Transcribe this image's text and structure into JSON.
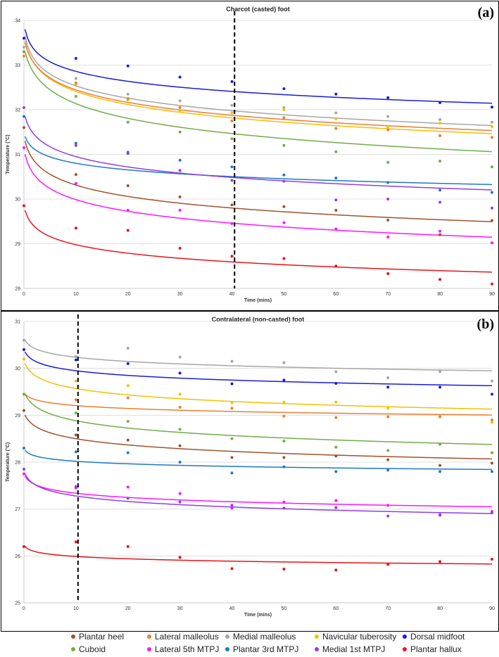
{
  "chart_data": [
    {
      "type": "scatter",
      "panel_label": "(a)",
      "title": "Charcot (casted) foot",
      "xlabel": "Time (mins)",
      "ylabel": "Temperature (°C)",
      "xlim": [
        0,
        90
      ],
      "ylim": [
        28,
        34
      ],
      "x_ticks": [
        "0",
        "10",
        "20",
        "30",
        "40",
        "50",
        "60",
        "70",
        "80",
        "90"
      ],
      "y_ticks": [
        "28",
        "29",
        "30",
        "31",
        "32",
        "33",
        "34"
      ],
      "vline_x": 40.5,
      "x": [
        0,
        10,
        20,
        30,
        40,
        50,
        60,
        70,
        80,
        90
      ],
      "series": [
        {
          "name": "Dorsal midfoot",
          "color": "#1a1ae0",
          "values": [
            33.6,
            33.15,
            32.98,
            32.73,
            32.63,
            32.47,
            32.35,
            32.27,
            32.16,
            32.06
          ],
          "fit": {
            "a": 33.8,
            "b": 0.33,
            "c": 0.4
          }
        },
        {
          "name": "Medial malleolus",
          "color": "#a6a6a6",
          "values": [
            33.4,
            32.7,
            32.35,
            32.2,
            32.1,
            32.05,
            31.93,
            31.85,
            31.78,
            31.72
          ],
          "fit": {
            "a": 33.65,
            "b": 0.412,
            "c": 0.5
          }
        },
        {
          "name": "Navicular tuberosity",
          "color": "#f2c000",
          "values": [
            33.3,
            32.57,
            32.22,
            31.98,
            31.93,
            32.0,
            31.8,
            31.62,
            31.7,
            31.62
          ],
          "fit": {
            "a": 33.55,
            "b": 0.441,
            "c": 0.6
          }
        },
        {
          "name": "Lateral malleolus",
          "color": "#ed7d31",
          "values": [
            33.2,
            32.6,
            32.25,
            32.05,
            31.75,
            31.82,
            31.58,
            31.55,
            31.42,
            31.38
          ],
          "fit": {
            "a": 33.5,
            "b": 0.426,
            "c": 0.7
          }
        },
        {
          "name": "Cuboid",
          "color": "#70ad47",
          "values": [
            33.3,
            32.3,
            31.72,
            31.5,
            31.35,
            31.2,
            31.06,
            30.82,
            30.85,
            30.72
          ],
          "fit": {
            "a": 33.3,
            "b": 0.507,
            "c": 0.9
          }
        },
        {
          "name": "Plantar 3rd MTPJ",
          "color": "#1f78c8",
          "values": [
            31.85,
            31.25,
            31.05,
            30.87,
            30.72,
            30.54,
            30.47,
            30.37,
            30.2,
            30.15
          ],
          "fit": {
            "a": 31.4,
            "b": 0.221,
            "c": 0.5
          }
        },
        {
          "name": "Medial 1st MTPJ",
          "color": "#8f3ee6",
          "values": [
            32.05,
            31.2,
            31.02,
            30.64,
            30.42,
            30.4,
            29.98,
            30.0,
            29.93,
            29.8
          ],
          "fit": {
            "a": 31.85,
            "b": 0.348,
            "c": 0.6
          }
        },
        {
          "name": "Plantar heel",
          "color": "#a0522d",
          "values": [
            31.6,
            30.55,
            30.3,
            30.05,
            29.87,
            29.83,
            29.75,
            29.53,
            29.2,
            29.52
          ],
          "fit": {
            "a": 31.3,
            "b": 0.382,
            "c": 0.6
          }
        },
        {
          "name": "Lateral 5th MTPJ",
          "color": "#ff14ff",
          "values": [
            31.15,
            30.35,
            29.75,
            29.75,
            29.45,
            29.47,
            29.33,
            29.15,
            29.28,
            29.02
          ],
          "fit": {
            "a": 31.0,
            "b": 0.392,
            "c": 0.6
          }
        },
        {
          "name": "Plantar hallux",
          "color": "#e8141a",
          "values": [
            29.85,
            29.35,
            29.3,
            28.9,
            28.72,
            28.67,
            28.5,
            28.33,
            28.2,
            28.1
          ],
          "fit": {
            "a": 29.75,
            "b": 0.285,
            "c": 0.5
          }
        }
      ]
    },
    {
      "type": "scatter",
      "panel_label": "(b)",
      "title": "Contralateral (non-casted) foot",
      "xlabel": "Time (mins)",
      "ylabel": "Temperature (°C)",
      "xlim": [
        0,
        90
      ],
      "ylim": [
        25,
        31
      ],
      "x_ticks": [
        "0",
        "10",
        "20",
        "30",
        "40",
        "50",
        "60",
        "70",
        "80",
        "90"
      ],
      "y_ticks": [
        "25",
        "26",
        "27",
        "28",
        "29",
        "30",
        "31"
      ],
      "vline_x": 10.4,
      "x": [
        0,
        10,
        20,
        30,
        40,
        50,
        60,
        70,
        80,
        90
      ],
      "series": [
        {
          "name": "Medial malleolus",
          "color": "#a6a6a6",
          "values": [
            30.6,
            30.25,
            30.43,
            30.24,
            30.15,
            30.12,
            29.93,
            29.8,
            29.93,
            29.73
          ],
          "fit": {
            "a": 30.6,
            "b": 0.134,
            "c": 0.5
          }
        },
        {
          "name": "Dorsal midfoot",
          "color": "#1a1ae0",
          "values": [
            30.4,
            30.18,
            30.1,
            29.9,
            29.67,
            29.75,
            29.68,
            29.6,
            29.6,
            29.45
          ],
          "fit": {
            "a": 30.35,
            "b": 0.148,
            "c": 0.5
          }
        },
        {
          "name": "Navicular tuberosity",
          "color": "#f2c000",
          "values": [
            30.2,
            29.73,
            29.63,
            29.45,
            29.27,
            29.28,
            29.28,
            29.15,
            28.97,
            28.85
          ],
          "fit": {
            "a": 30.1,
            "b": 0.205,
            "c": 0.6
          }
        },
        {
          "name": "Lateral malleolus",
          "color": "#ed7d31",
          "values": [
            29.45,
            29.33,
            29.37,
            29.17,
            29.15,
            28.98,
            28.95,
            28.97,
            28.97,
            28.9
          ],
          "fit": {
            "a": 29.45,
            "b": 0.094,
            "c": 0.6
          }
        },
        {
          "name": "Cuboid",
          "color": "#70ad47",
          "values": [
            29.45,
            29.05,
            28.87,
            28.7,
            28.5,
            28.45,
            28.32,
            28.25,
            28.38,
            28.2
          ],
          "fit": {
            "a": 29.45,
            "b": 0.238,
            "c": 0.8
          }
        },
        {
          "name": "Plantar heel",
          "color": "#a0522d",
          "values": [
            29.1,
            28.58,
            28.47,
            28.35,
            28.1,
            28.1,
            28.13,
            28.05,
            27.93,
            27.98
          ],
          "fit": {
            "a": 29.0,
            "b": 0.202,
            "c": 0.7
          }
        },
        {
          "name": "Plantar 3rd MTPJ",
          "color": "#1f78c8",
          "values": [
            28.3,
            28.22,
            28.2,
            28.0,
            27.77,
            27.9,
            27.8,
            27.83,
            27.8,
            27.8
          ],
          "fit": {
            "a": 28.25,
            "b": 0.081,
            "c": 0.4
          }
        },
        {
          "name": "Lateral 5th MTPJ",
          "color": "#ff14ff",
          "values": [
            27.75,
            27.45,
            27.47,
            27.33,
            27.02,
            27.15,
            27.18,
            27.08,
            26.88,
            26.95
          ],
          "fit": {
            "a": 27.7,
            "b": 0.134,
            "c": 0.5
          }
        },
        {
          "name": "Medial 1st MTPJ",
          "color": "#8f3ee6",
          "values": [
            27.85,
            27.48,
            27.23,
            27.15,
            27.08,
            27.02,
            27.03,
            26.85,
            26.87,
            26.92
          ],
          "fit": {
            "a": 27.75,
            "b": 0.174,
            "c": 0.5
          }
        },
        {
          "name": "Plantar hallux",
          "color": "#e8141a",
          "values": [
            26.2,
            26.3,
            26.2,
            25.97,
            25.73,
            25.72,
            25.7,
            25.82,
            25.88,
            25.93
          ],
          "fit": {
            "a": 26.2,
            "b": 0.074,
            "c": 0.4
          }
        }
      ]
    }
  ],
  "legend": {
    "rows": [
      [
        {
          "label": "Plantar heel",
          "color": "#a0522d"
        },
        {
          "label": "Lateral malleolus",
          "color": "#ed7d31"
        },
        {
          "label": "Medial malleolus",
          "color": "#a6a6a6"
        },
        {
          "label": "Navicular tuberosity",
          "color": "#f2c000"
        },
        {
          "label": "Dorsal midfoot",
          "color": "#1a1ae0"
        }
      ],
      [
        {
          "label": "Cuboid",
          "color": "#70ad47"
        },
        {
          "label": "Lateral 5th MTPJ",
          "color": "#ff14ff"
        },
        {
          "label": "Plantar 3rd MTPJ",
          "color": "#1f78c8"
        },
        {
          "label": "Medial 1st MTPJ",
          "color": "#8f3ee6"
        },
        {
          "label": "Plantar hallux",
          "color": "#e8141a"
        }
      ]
    ]
  }
}
